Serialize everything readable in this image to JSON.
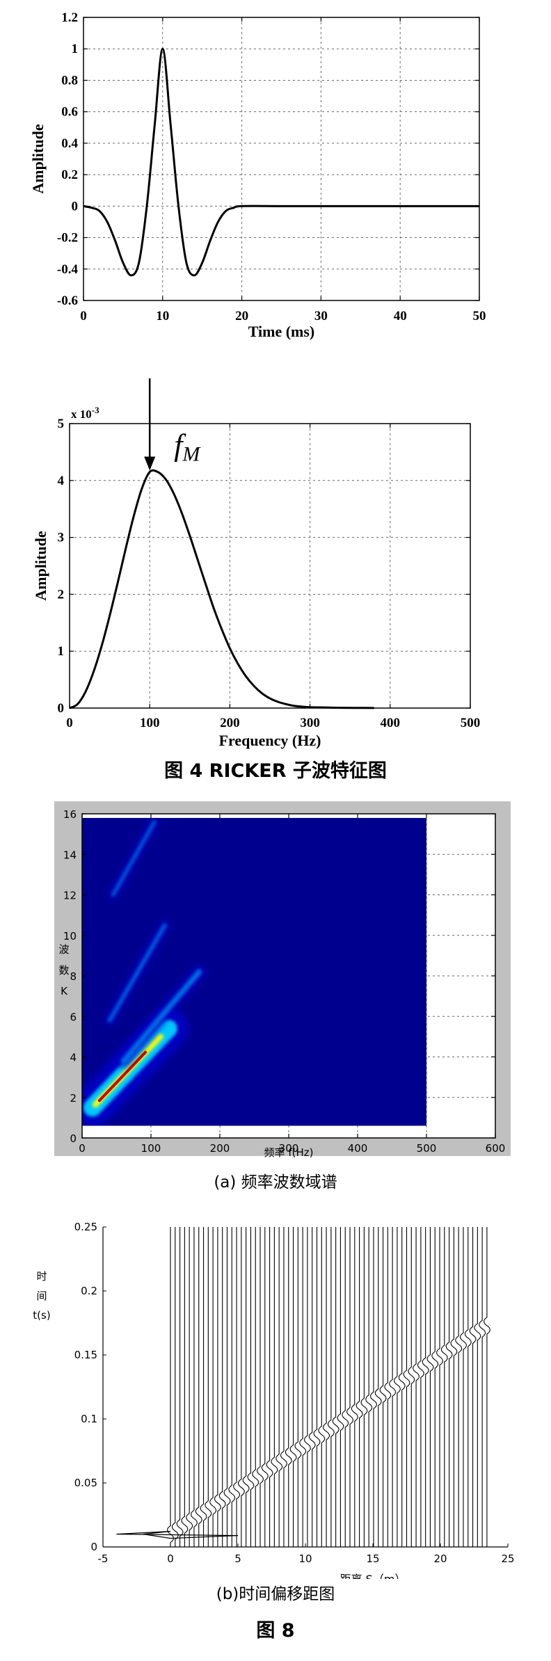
{
  "figure4_caption": "图 4 RICKER 子波特征图",
  "figure8_caption": "图 8",
  "chart_data": [
    {
      "id": "ricker-time",
      "type": "line",
      "xlabel": "Time (ms)",
      "ylabel": "Amplitude",
      "xlim": [
        0,
        50
      ],
      "ylim": [
        -0.6,
        1.2
      ],
      "xticks": [
        0,
        10,
        20,
        30,
        40,
        50
      ],
      "yticks": [
        -0.6,
        -0.4,
        -0.2,
        0,
        0.2,
        0.4,
        0.6,
        0.8,
        1,
        1.2
      ],
      "grid": true,
      "series": [
        {
          "x": [
            0,
            1,
            2,
            3,
            4,
            5,
            6,
            7,
            8,
            9,
            10,
            11,
            12,
            13,
            14,
            15,
            16,
            17,
            18,
            19,
            20,
            25,
            30,
            35,
            40,
            45,
            50
          ],
          "y": [
            0.0,
            -0.01,
            -0.03,
            -0.1,
            -0.22,
            -0.36,
            -0.44,
            -0.36,
            0.0,
            0.52,
            1.0,
            0.52,
            0.0,
            -0.36,
            -0.44,
            -0.36,
            -0.22,
            -0.1,
            -0.03,
            -0.01,
            0.0,
            0.0,
            0.0,
            0.0,
            0.0,
            0.0,
            0.0
          ]
        }
      ]
    },
    {
      "id": "ricker-spectrum",
      "type": "line",
      "xlabel": "Frequency (Hz)",
      "ylabel": "Amplitude",
      "y_multiplier_label": "x 10",
      "y_multiplier_exp": "-3",
      "xlim": [
        0,
        500
      ],
      "ylim": [
        0,
        5
      ],
      "xticks": [
        0,
        100,
        200,
        300,
        400,
        500
      ],
      "yticks": [
        0,
        1,
        2,
        3,
        4,
        5
      ],
      "grid": true,
      "annotation": {
        "text": "f",
        "subscript": "M",
        "x": 100,
        "y": 4.15
      },
      "series": [
        {
          "x": [
            0,
            10,
            20,
            30,
            40,
            50,
            60,
            70,
            80,
            90,
            100,
            110,
            120,
            130,
            140,
            150,
            160,
            170,
            180,
            190,
            200,
            210,
            220,
            230,
            240,
            250,
            260,
            270,
            280,
            290,
            300,
            320,
            340,
            360,
            380
          ],
          "y": [
            0,
            0.07,
            0.29,
            0.64,
            1.09,
            1.62,
            2.2,
            2.8,
            3.37,
            3.85,
            4.15,
            4.15,
            4.02,
            3.77,
            3.43,
            3.03,
            2.6,
            2.17,
            1.75,
            1.38,
            1.05,
            0.78,
            0.56,
            0.39,
            0.26,
            0.17,
            0.11,
            0.07,
            0.04,
            0.025,
            0.015,
            0.01,
            0.005,
            0.003,
            0.002
          ]
        }
      ]
    },
    {
      "id": "fk-spectrum",
      "type": "heatmap",
      "caption": "(a) 频率波数域谱",
      "xlabel": "频率 f(Hz)",
      "ylabel_chars": [
        "波",
        "数",
        "K"
      ],
      "xlim": [
        0,
        600
      ],
      "ylim": [
        0,
        16
      ],
      "xticks": [
        0,
        100,
        200,
        300,
        400,
        500,
        600
      ],
      "yticks": [
        0,
        2,
        4,
        6,
        8,
        10,
        12,
        14,
        16
      ],
      "grid": true,
      "extent": {
        "x": [
          0,
          500
        ],
        "y": [
          0.6,
          15.8
        ]
      },
      "colors": {
        "background": "#00008f",
        "low": "#0000c8",
        "mid": "#00c8ff",
        "high": "#ffff00",
        "peak": "#c80000"
      },
      "bands": [
        {
          "from": [
            15,
            1.5
          ],
          "to": [
            125,
            5.4
          ],
          "peak": 1.0
        },
        {
          "from": [
            60,
            3.8
          ],
          "to": [
            170,
            8.2
          ],
          "peak": 0.3
        },
        {
          "from": [
            40,
            5.8
          ],
          "to": [
            120,
            10.5
          ],
          "peak": 0.22
        },
        {
          "from": [
            45,
            12.0
          ],
          "to": [
            105,
            15.6
          ],
          "peak": 0.2
        }
      ]
    },
    {
      "id": "tx-gather",
      "type": "line",
      "caption": "(b)时间偏移距图",
      "xlabel": "距离 S（m）",
      "ylabel_chars": [
        "时",
        "间",
        "t(s)"
      ],
      "xlim": [
        -5,
        25
      ],
      "ylim": [
        0,
        0.25
      ],
      "xticks": [
        -5,
        0,
        5,
        10,
        15,
        20,
        25
      ],
      "yticks": [
        0,
        0.05,
        0.1,
        0.15,
        0.2,
        0.25
      ],
      "traces": {
        "first_offset": 0,
        "last_offset": 23.75,
        "spacing": 0.35
      },
      "arrival": {
        "t0": 0.01,
        "t1": 0.175,
        "s1": 23.75
      },
      "grid": false
    }
  ]
}
